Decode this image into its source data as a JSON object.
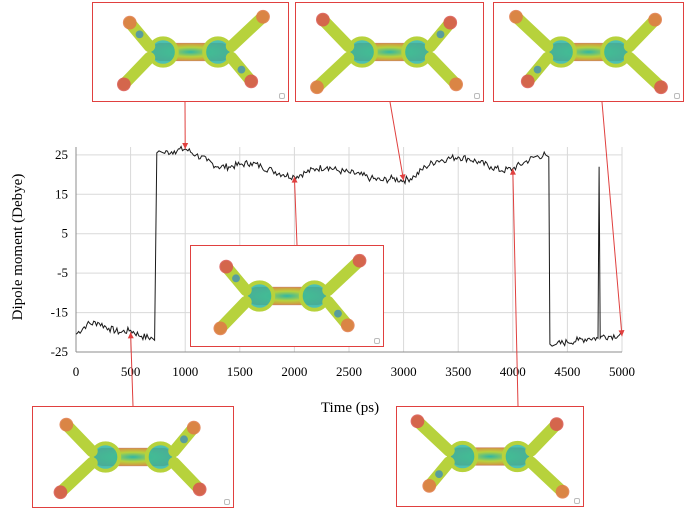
{
  "chart_data": {
    "type": "line",
    "xlabel": "Time (ps)",
    "ylabel": "Dipole moment (Debye)",
    "xlim": [
      0,
      5000
    ],
    "ylim": [
      -25,
      27
    ],
    "x_ticks": [
      "0",
      "500",
      "1000",
      "1500",
      "2000",
      "2500",
      "3000",
      "3500",
      "4000",
      "4500",
      "5000"
    ],
    "y_ticks": [
      "25",
      "15",
      "5",
      "-5",
      "-15",
      "-25"
    ],
    "grid": true,
    "legend": "none",
    "line_color": "#1a1a1a",
    "annotation_color": "#e0403f",
    "series": [
      {
        "x": [
          0,
          100,
          200,
          300,
          400,
          500,
          600,
          700,
          720,
          740,
          760,
          800,
          900,
          1000,
          1100,
          1200,
          1300,
          1400,
          1500,
          1600,
          1700,
          1800,
          1900,
          2000,
          2100,
          2200,
          2300,
          2400,
          2500,
          2600,
          2700,
          2800,
          2900,
          3000,
          3100,
          3200,
          3300,
          3400,
          3500,
          3600,
          3700,
          3800,
          3900,
          4000,
          4100,
          4200,
          4300,
          4330,
          4340,
          4360,
          4400,
          4500,
          4600,
          4700,
          4780,
          4790,
          4800,
          4810,
          4820,
          4900,
          5000
        ],
        "y": [
          -20.5,
          -18.0,
          -17.5,
          -19.0,
          -20.0,
          -19.5,
          -21.0,
          -21.5,
          -22.0,
          25.5,
          26.0,
          25.5,
          26.0,
          26.5,
          25.0,
          23.5,
          22.0,
          22.0,
          22.5,
          23.0,
          22.0,
          21.0,
          20.0,
          19.5,
          20.5,
          21.5,
          22.0,
          21.0,
          20.5,
          20.0,
          19.0,
          18.5,
          19.0,
          18.5,
          19.5,
          22.0,
          23.5,
          24.0,
          24.5,
          24.0,
          23.0,
          22.0,
          21.0,
          21.5,
          23.0,
          24.5,
          25.0,
          24.5,
          -23.0,
          -23.5,
          -23.0,
          -22.5,
          -22.0,
          -21.5,
          -21.5,
          22.0,
          -21.5,
          -21.0,
          -21.0,
          -21.0,
          -20.5
        ]
      }
    ],
    "annotations": [
      {
        "x": 500,
        "y": -20,
        "inset": "bottom-left"
      },
      {
        "x": 1000,
        "y": 26.5,
        "inset": "top-left"
      },
      {
        "x": 2000,
        "y": 19.5,
        "inset": "center"
      },
      {
        "x": 3000,
        "y": 18.5,
        "inset": "top-center"
      },
      {
        "x": 4000,
        "y": 21.5,
        "inset": "bottom-right"
      },
      {
        "x": 5000,
        "y": -21,
        "inset": "top-right"
      }
    ]
  },
  "molecule_colors": {
    "core": "#2fb6a5",
    "body": "#b7d23c",
    "edge": "#e07846",
    "hot": "#d9534f",
    "blue": "#2f86c8"
  }
}
